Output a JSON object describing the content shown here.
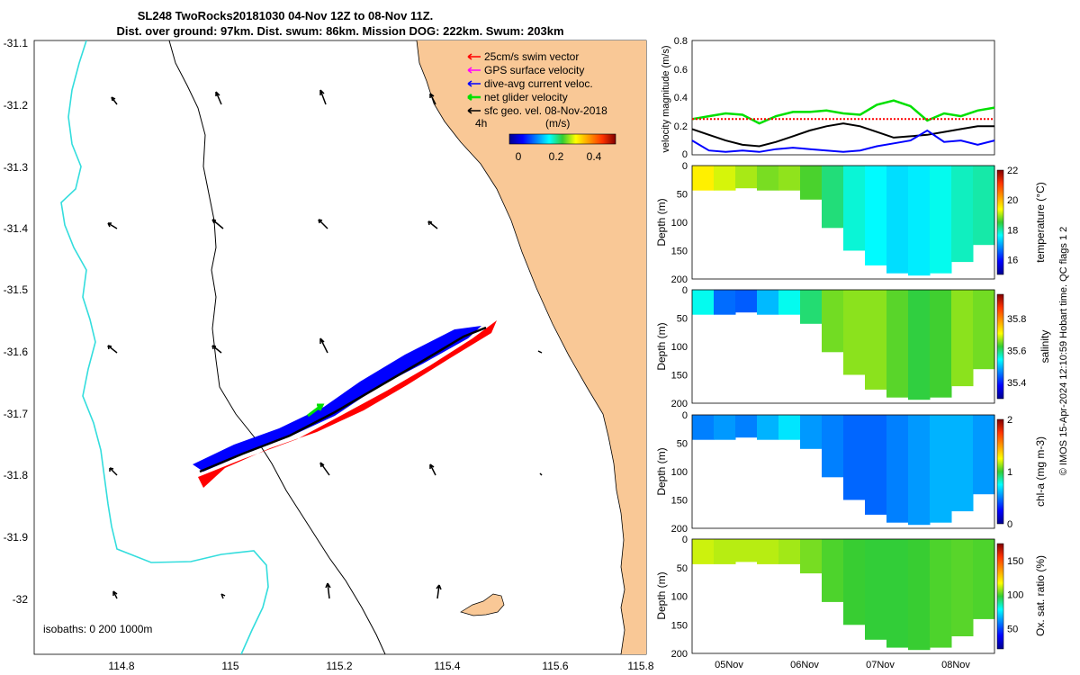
{
  "title": {
    "line1": "SL248 TwoRocks20181030 04-Nov 12Z to 08-Nov 11Z.",
    "line2": "Dist. over ground: 97km. Dist. swum: 86km. Mission DOG: 222km. Swum: 203km"
  },
  "map": {
    "legend": [
      {
        "label": "25cm/s swim vector",
        "color": "#ff0000"
      },
      {
        "label": "GPS surface velocity",
        "color": "#ff00ff"
      },
      {
        "label": "dive-avg current veloc.",
        "color": "#0000ff"
      },
      {
        "label": "net glider velocity",
        "color": "#00e000"
      },
      {
        "label": "sfc geo. vel. 08-Nov-2018",
        "color": "#000000"
      }
    ],
    "legend_extra": "4h",
    "colorbar": {
      "title": "(m/s)",
      "ticks": [
        "0",
        "0.2",
        "0.4"
      ]
    },
    "isobaths_label": "isobaths: 0   200  1000m",
    "x_ticks": [
      "114.8",
      "115",
      "115.2",
      "115.4",
      "115.6",
      "115.8"
    ],
    "y_ticks": [
      "-31.1",
      "-31.2",
      "-31.3",
      "-31.4",
      "-31.5",
      "-31.6",
      "-31.7",
      "-31.8",
      "-31.9",
      "-32"
    ],
    "land_color": "#f9c896",
    "isobath_200_color": "#000000",
    "isobath_1000_color": "#33dddd"
  },
  "chart_data": [
    {
      "type": "line",
      "name": "velocity",
      "ylabel": "velocity magnitude (m/s)",
      "ylim": [
        0,
        0.8
      ],
      "y_ticks": [
        "0",
        "0.2",
        "0.4",
        "0.6",
        "0.8"
      ],
      "series": [
        {
          "color": "#00e000",
          "values": [
            0.25,
            0.27,
            0.29,
            0.28,
            0.22,
            0.27,
            0.3,
            0.3,
            0.31,
            0.29,
            0.28,
            0.35,
            0.38,
            0.34,
            0.24,
            0.29,
            0.27,
            0.31,
            0.33
          ]
        },
        {
          "color": "#ff0000",
          "values": [
            0.25,
            0.25,
            0.25,
            0.25,
            0.25,
            0.25,
            0.25,
            0.25,
            0.25,
            0.25,
            0.25,
            0.25,
            0.25,
            0.25,
            0.25,
            0.25,
            0.25,
            0.25,
            0.25
          ]
        },
        {
          "color": "#000000",
          "values": [
            0.18,
            0.14,
            0.1,
            0.07,
            0.06,
            0.09,
            0.13,
            0.17,
            0.2,
            0.22,
            0.2,
            0.16,
            0.12,
            0.13,
            0.14,
            0.16,
            0.18,
            0.2,
            0.2
          ]
        },
        {
          "color": "#0000ff",
          "values": [
            0.1,
            0.03,
            0.02,
            0.03,
            0.02,
            0.04,
            0.05,
            0.04,
            0.03,
            0.02,
            0.03,
            0.06,
            0.08,
            0.1,
            0.17,
            0.09,
            0.1,
            0.07,
            0.1
          ]
        }
      ]
    },
    {
      "type": "heatmap",
      "name": "temperature",
      "ylabel": "Depth (m)",
      "clabel": "temperature (°C)",
      "c_ticks": [
        "16",
        "18",
        "20",
        "22"
      ],
      "clim": [
        15,
        22
      ],
      "ylim": [
        0,
        200
      ],
      "y_ticks": [
        "0",
        "50",
        "100",
        "150",
        "200"
      ],
      "column_values": [
        19.5,
        19.2,
        19.0,
        18.8,
        18.9,
        18.6,
        18.2,
        17.8,
        17.6,
        17.4,
        17.5,
        17.7,
        17.9,
        18.0
      ]
    },
    {
      "type": "heatmap",
      "name": "salinity",
      "ylabel": "Depth (m)",
      "clabel": "salinity",
      "c_ticks": [
        "35.4",
        "35.6",
        "35.8"
      ],
      "clim": [
        35.3,
        35.95
      ],
      "ylim": [
        0,
        200
      ],
      "y_ticks": [
        "0",
        "50",
        "100",
        "150",
        "200"
      ],
      "column_values": [
        35.55,
        35.45,
        35.44,
        35.5,
        35.55,
        35.6,
        35.65,
        35.66,
        35.66,
        35.64,
        35.62,
        35.63,
        35.66,
        35.65
      ]
    },
    {
      "type": "heatmap",
      "name": "chl-a",
      "ylabel": "Depth (m)",
      "clabel": "chl-a (mg m-3)",
      "c_ticks": [
        "0",
        "1",
        "2"
      ],
      "clim": [
        0,
        2
      ],
      "ylim": [
        0,
        200
      ],
      "y_ticks": [
        "0",
        "50",
        "100",
        "150",
        "200"
      ],
      "column_values": [
        0.5,
        0.55,
        0.5,
        0.6,
        0.7,
        0.55,
        0.5,
        0.45,
        0.45,
        0.5,
        0.55,
        0.6,
        0.6,
        0.55
      ]
    },
    {
      "type": "heatmap",
      "name": "oxygen",
      "ylabel": "Depth (m)",
      "clabel": "Ox. sat. ratio (%)",
      "c_ticks": [
        "50",
        "100",
        "150"
      ],
      "clim": [
        20,
        175
      ],
      "ylim": [
        0,
        200
      ],
      "y_ticks": [
        "0",
        "50",
        "100",
        "150",
        "200"
      ],
      "column_values": [
        112,
        110,
        110,
        110,
        108,
        104,
        100,
        98,
        97,
        97,
        98,
        100,
        101,
        100
      ]
    }
  ],
  "time_axis": {
    "ticks": [
      "05Nov",
      "06Nov",
      "07Nov",
      "08Nov"
    ]
  },
  "footer": "© IMOS 15-Apr-2024 12:10:59 Hobart time. QC flags 1  2"
}
